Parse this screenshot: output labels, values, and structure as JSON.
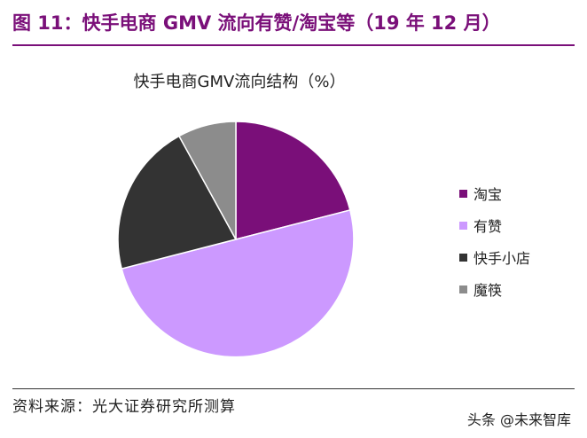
{
  "figure_title": "图 11：快手电商 GMV 流向有赞/淘宝等（19 年 12 月）",
  "source": "资料来源：光大证券研究所测算",
  "watermark": "头条 @未来智库",
  "colors": {
    "accent": "#7a0f79"
  },
  "chart_data": {
    "type": "pie",
    "title": "快手电商GMV流向结构（%）",
    "legend_position": "right",
    "categories": [
      "淘宝",
      "有赞",
      "快手小店",
      "魔筷"
    ],
    "values": [
      21,
      50,
      21,
      8
    ],
    "colors": [
      "#7a0f79",
      "#cc99ff",
      "#333333",
      "#8c8c8c"
    ]
  }
}
